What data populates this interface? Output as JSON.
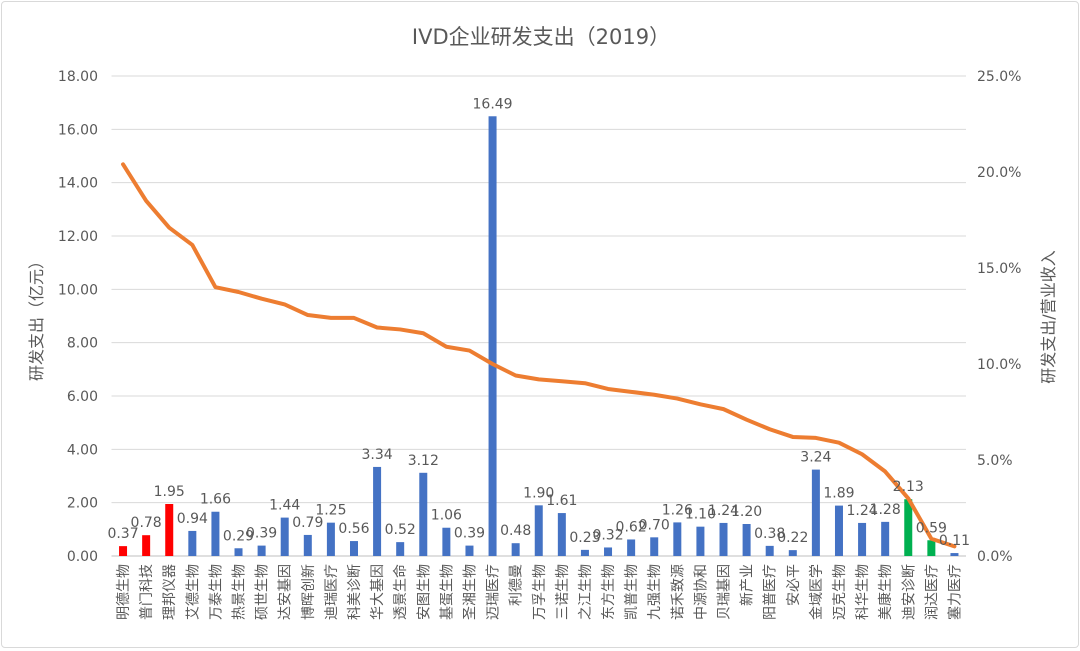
{
  "chart_data": {
    "type": "bar+line",
    "title": "IVD企业研发支出（2019）",
    "ylabel": "研发支出（亿元）",
    "y2label": "研发支出/营业收入",
    "ylim": [
      0,
      18
    ],
    "y2lim": [
      0,
      25
    ],
    "yticks": [
      "0.00",
      "2.00",
      "4.00",
      "6.00",
      "8.00",
      "10.00",
      "12.00",
      "14.00",
      "16.00",
      "18.00"
    ],
    "y2ticks": [
      "0.0%",
      "5.0%",
      "10.0%",
      "15.0%",
      "20.0%",
      "25.0%"
    ],
    "grid": true,
    "categories": [
      "明德生物",
      "普门科技",
      "理邦仪器",
      "艾德生物",
      "万泰生物",
      "热景生物",
      "硕世生物",
      "达安基因",
      "博晖创新",
      "迪瑞医疗",
      "科美诊断",
      "华大基因",
      "透景生命",
      "安图生物",
      "基蛋生物",
      "圣湘生物",
      "迈瑞医疗",
      "利德曼",
      "万孚生物",
      "三诺生物",
      "之江生物",
      "东方生物",
      "凯普生物",
      "九强生物",
      "诺禾致源",
      "中源协和",
      "贝瑞基因",
      "新产业",
      "阳普医疗",
      "安必平",
      "金域医学",
      "迈克生物",
      "科华生物",
      "美康生物",
      "迪安诊断",
      "润达医疗",
      "塞力医疗"
    ],
    "bar_values": [
      0.37,
      0.78,
      1.95,
      0.94,
      1.66,
      0.29,
      0.39,
      1.44,
      0.79,
      1.25,
      0.56,
      3.34,
      0.52,
      3.12,
      1.06,
      0.39,
      16.49,
      0.48,
      1.9,
      1.61,
      0.23,
      0.32,
      0.62,
      0.7,
      1.26,
      1.1,
      1.24,
      1.2,
      0.38,
      0.22,
      3.24,
      1.89,
      1.24,
      1.28,
      2.13,
      0.59,
      0.11
    ],
    "bar_labels": [
      "0.37",
      "0.78",
      "1.95",
      "0.94",
      "1.66",
      "0.29",
      "0.39",
      "1.44",
      "0.79",
      "1.25",
      "0.56",
      "3.34",
      "0.52",
      "3.12",
      "1.06",
      "0.39",
      "16.49",
      "0.48",
      "1.90",
      "1.61",
      "0.23",
      "0.32",
      "0.62",
      "0.70",
      "1.26",
      "1.10",
      "1.24",
      "1.20",
      "0.38",
      "0.22",
      "3.24",
      "1.89",
      "1.24",
      "1.28",
      "2.13",
      "0.59",
      "0.11"
    ],
    "bar_groups": [
      "red",
      "red",
      "red",
      "blue",
      "blue",
      "blue",
      "blue",
      "blue",
      "blue",
      "blue",
      "blue",
      "blue",
      "blue",
      "blue",
      "blue",
      "blue",
      "blue",
      "blue",
      "blue",
      "blue",
      "blue",
      "blue",
      "blue",
      "blue",
      "blue",
      "blue",
      "blue",
      "blue",
      "blue",
      "blue",
      "blue",
      "blue",
      "blue",
      "blue",
      "green",
      "green",
      "blue"
    ],
    "line_values_pct": [
      20.4,
      18.5,
      17.1,
      16.2,
      14.0,
      13.75,
      13.4,
      13.1,
      12.55,
      12.4,
      12.4,
      11.9,
      11.8,
      11.6,
      10.9,
      10.7,
      10.0,
      9.4,
      9.2,
      9.1,
      9.0,
      8.7,
      8.55,
      8.4,
      8.2,
      7.9,
      7.65,
      7.1,
      6.6,
      6.2,
      6.15,
      5.9,
      5.3,
      4.4,
      3.0,
      0.9,
      0.5
    ],
    "colors": {
      "red": "#ff0000",
      "blue": "#4472c4",
      "green": "#00b050",
      "line": "#ed7d31",
      "grid": "#d9d9d9",
      "text": "#595959"
    }
  }
}
